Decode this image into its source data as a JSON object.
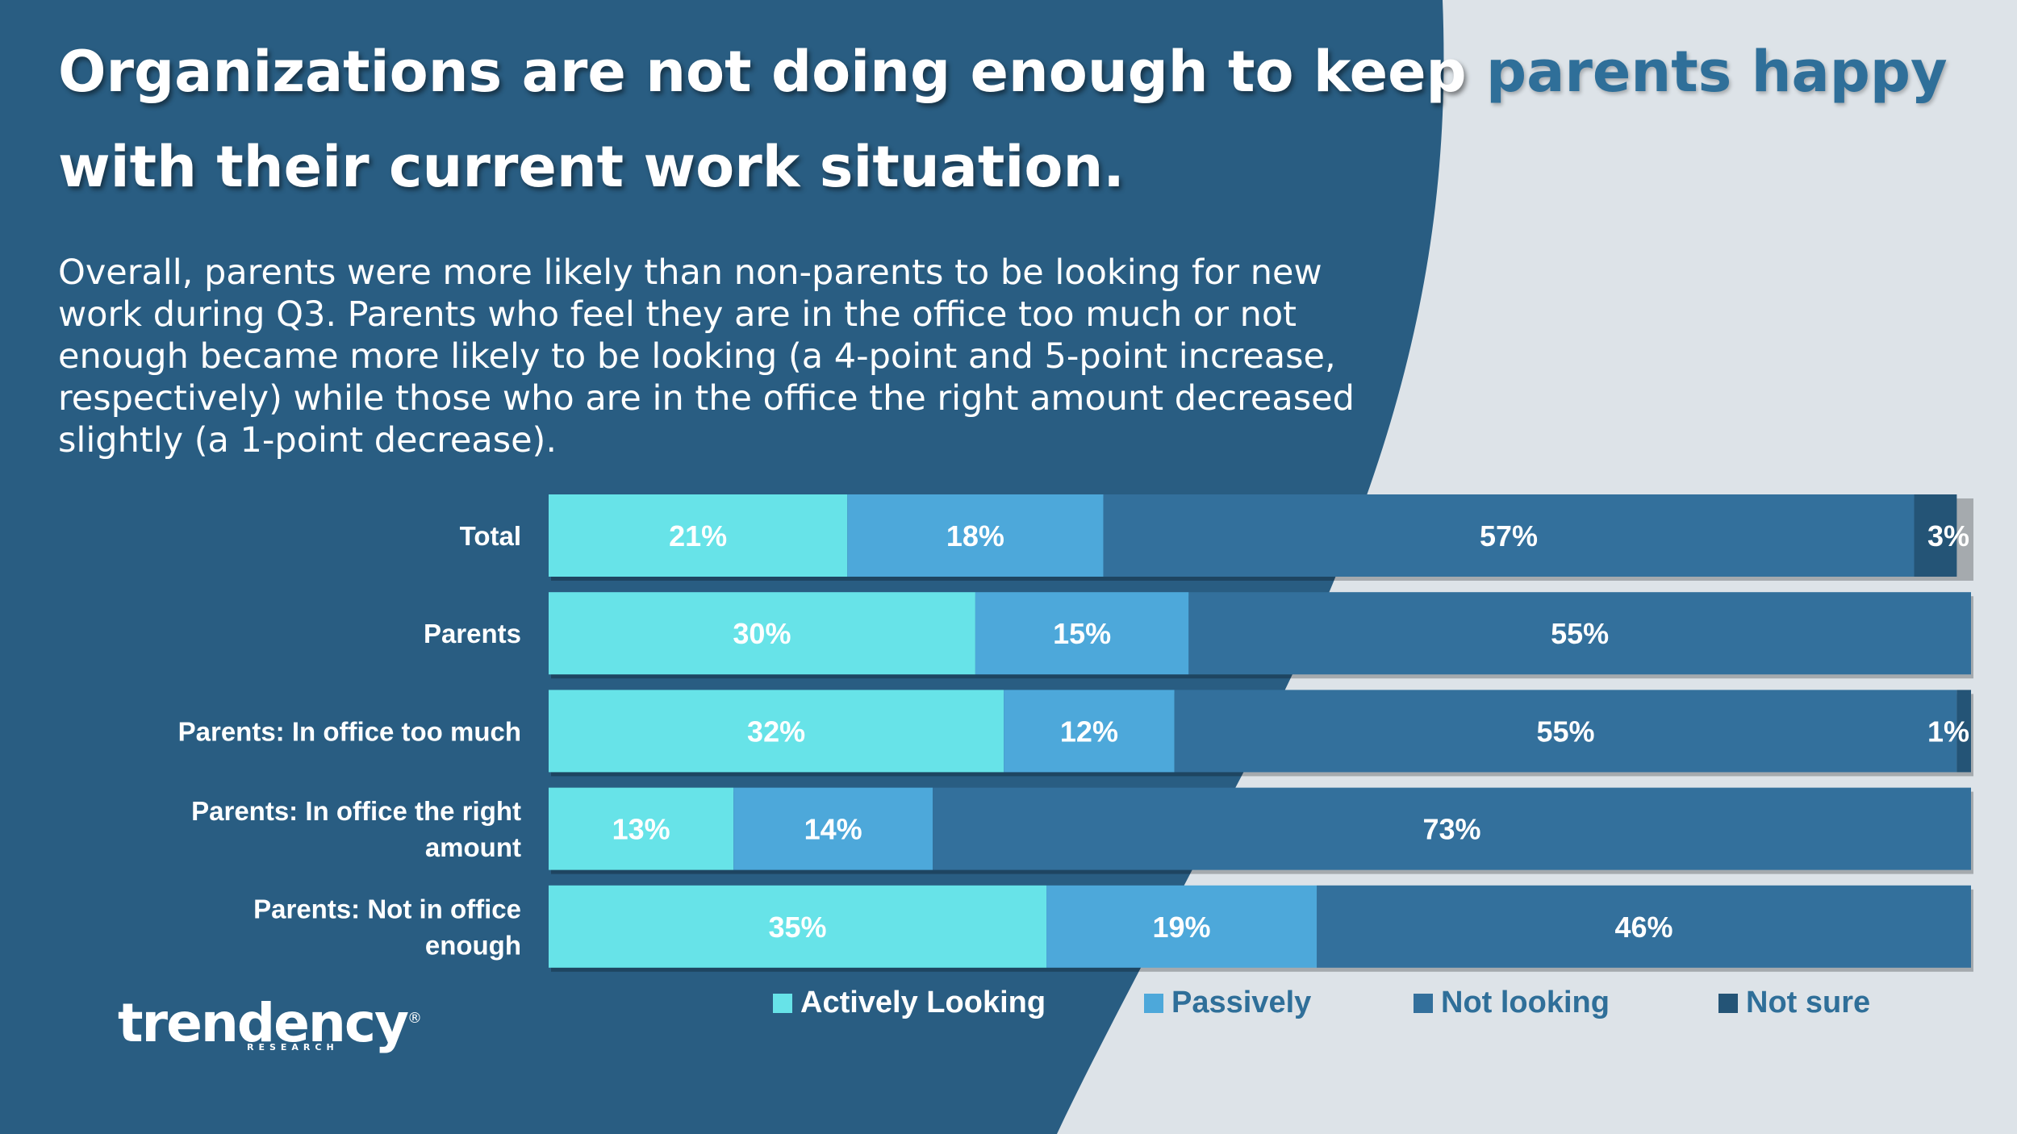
{
  "header": {
    "title_part1": "Organizations are not doing enough to keep ",
    "title_accent": "parents happy",
    "title_part2": " with their current work situation.",
    "subtitle": "Overall, parents were more likely than non-parents to be looking for new work during Q3. Parents who feel they are in the office too much or not enough became more likely to be looking (a 4-point and 5-point increase, respectively) while those who are in the office the right amount decreased slightly (a 1-point decrease)."
  },
  "colors": {
    "dark_panel": "#295d82",
    "light_panel": "#dde3e8",
    "actively_looking": "#67e3e8",
    "passively": "#4da8da",
    "not_looking": "#33709c",
    "not_sure": "#245476",
    "accent_text": "#2f6f99"
  },
  "chart_data": {
    "type": "bar",
    "orientation": "horizontal",
    "stacked": true,
    "categories": [
      "Total",
      "Parents",
      "Parents: In office too much",
      "Parents: In office the right amount",
      "Parents: Not in office enough"
    ],
    "series": [
      {
        "name": "Actively Looking",
        "values": [
          21,
          30,
          32,
          13,
          35
        ],
        "labels": [
          "21%",
          "30%",
          "32%",
          "13%",
          "35%"
        ]
      },
      {
        "name": "Passively",
        "values": [
          18,
          15,
          12,
          14,
          19
        ],
        "labels": [
          "18%",
          "15%",
          "12%",
          "14%",
          "19%"
        ]
      },
      {
        "name": "Not looking",
        "values": [
          57,
          55,
          55,
          73,
          46
        ],
        "labels": [
          "57%",
          "55%",
          "55%",
          "73%",
          "46%"
        ]
      },
      {
        "name": "Not sure",
        "values": [
          3,
          0,
          1,
          0,
          0
        ],
        "labels": [
          "3%",
          "",
          "1%",
          "",
          ""
        ]
      }
    ],
    "xlim": [
      0,
      100
    ],
    "grid": false,
    "legend_position": "bottom"
  },
  "logo": {
    "word": "trendency",
    "sub": "RESEARCH",
    "mark": "®"
  }
}
